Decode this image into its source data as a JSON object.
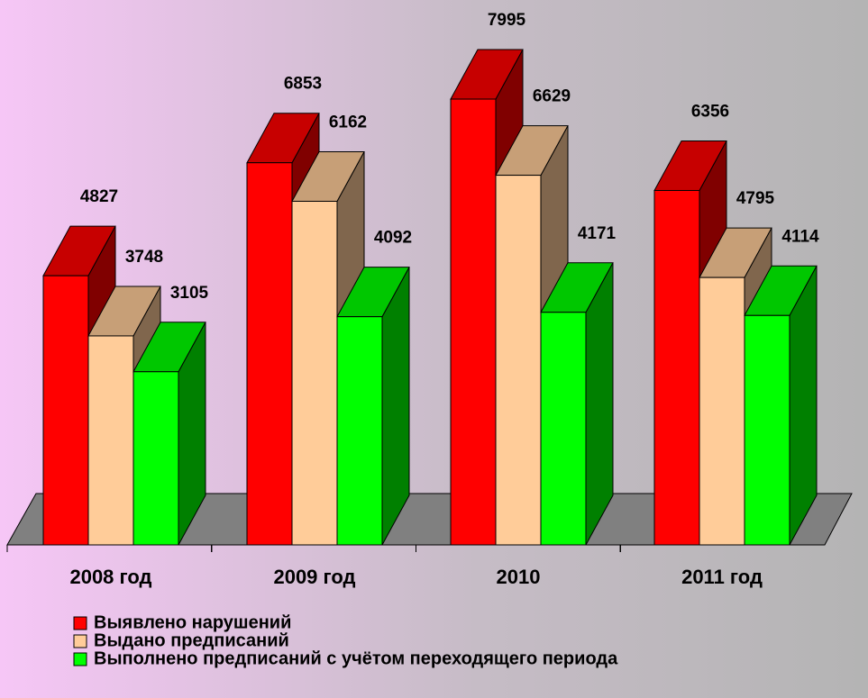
{
  "chart_data": {
    "type": "bar3d",
    "categories": [
      "2008 год",
      "2009 год",
      "2010",
      "2011 год"
    ],
    "series": [
      {
        "name": "Выявлено нарушений",
        "color": "#ff0000",
        "values": [
          4827,
          6853,
          7995,
          6356
        ]
      },
      {
        "name": "Выдано предписаний",
        "color": "#ffcc99",
        "values": [
          3748,
          6162,
          6629,
          4795
        ]
      },
      {
        "name": "Выполнено предписаний с учётом переходящего периода",
        "color": "#00ff00",
        "values": [
          3105,
          4092,
          4171,
          4114
        ]
      }
    ],
    "legend": "bottom"
  }
}
